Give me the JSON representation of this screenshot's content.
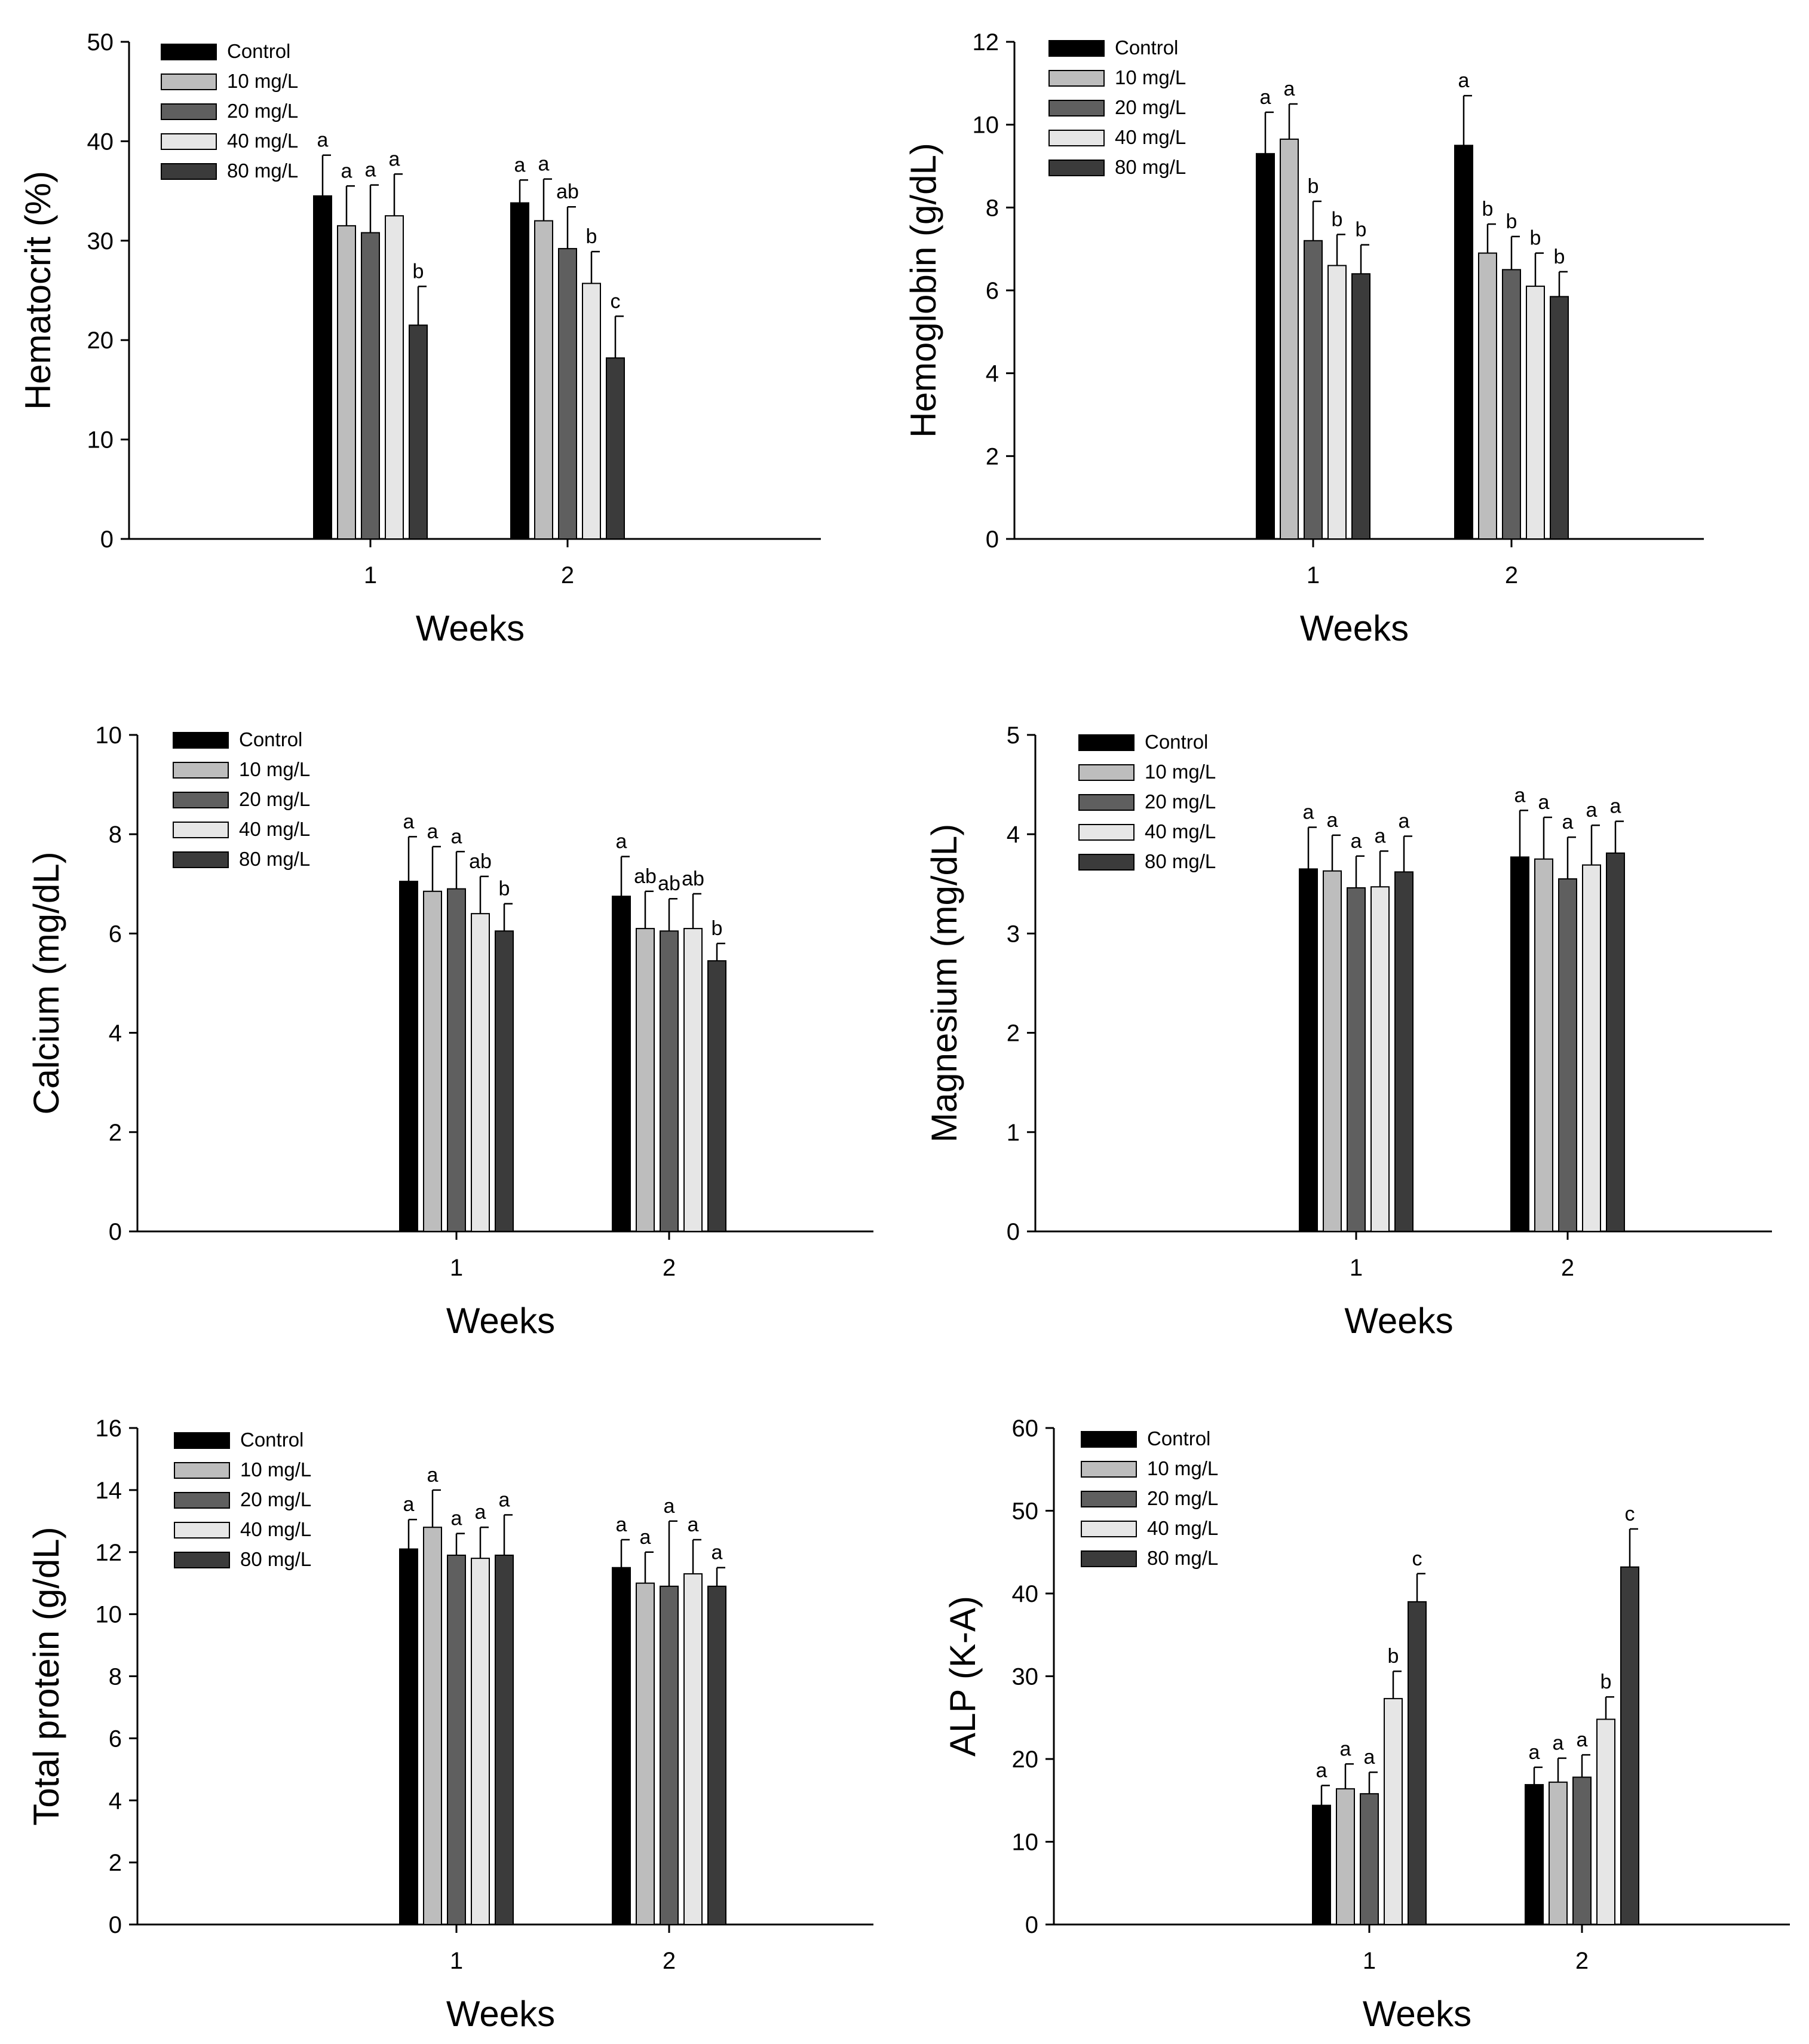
{
  "chart_data": [
    {
      "type": "bar",
      "ylabel": "Hematocrit (%)",
      "xlabel": "Weeks",
      "ylim": [
        0,
        50
      ],
      "yticks": [
        "0",
        "10",
        "20",
        "30",
        "40",
        "50"
      ],
      "categories": [
        "1",
        "2"
      ],
      "legend": [
        "Control",
        "10 mg/L",
        "20 mg/L",
        "40 mg/L",
        "80 mg/L"
      ],
      "series": [
        {
          "name": "Control",
          "color": "#000000",
          "values": [
            34.5,
            33.8
          ],
          "errors": [
            4.1,
            2.3
          ],
          "letters": [
            "a",
            "a"
          ]
        },
        {
          "name": "10 mg/L",
          "color": "#bdbdbd",
          "values": [
            31.5,
            32.0
          ],
          "errors": [
            4.0,
            4.2
          ],
          "letters": [
            "a",
            "a"
          ]
        },
        {
          "name": "20 mg/L",
          "color": "#5f5f5f",
          "values": [
            30.8,
            29.2
          ],
          "errors": [
            4.8,
            4.2
          ],
          "letters": [
            "a",
            "ab"
          ]
        },
        {
          "name": "40 mg/L",
          "color": "#e6e6e6",
          "values": [
            32.5,
            25.7
          ],
          "errors": [
            4.2,
            3.2
          ],
          "letters": [
            "a",
            "b"
          ]
        },
        {
          "name": "80 mg/L",
          "color": "#3b3b3b",
          "values": [
            21.5,
            18.2
          ],
          "errors": [
            3.9,
            4.2
          ],
          "letters": [
            "b",
            "c"
          ]
        }
      ]
    },
    {
      "type": "bar",
      "ylabel": "Hemoglobin (g/dL)",
      "xlabel": "Weeks",
      "ylim": [
        0,
        12
      ],
      "yticks": [
        "0",
        "2",
        "4",
        "6",
        "8",
        "10",
        "12"
      ],
      "categories": [
        "1",
        "2"
      ],
      "legend": [
        "Control",
        "10 mg/L",
        "20 mg/L",
        "40 mg/L",
        "80 mg/L"
      ],
      "series": [
        {
          "name": "Control",
          "color": "#000000",
          "values": [
            9.3,
            9.5
          ],
          "errors": [
            1.0,
            1.2
          ],
          "letters": [
            "a",
            "a"
          ]
        },
        {
          "name": "10 mg/L",
          "color": "#bdbdbd",
          "values": [
            9.65,
            6.9
          ],
          "errors": [
            0.85,
            0.7
          ],
          "letters": [
            "a",
            "b"
          ]
        },
        {
          "name": "20 mg/L",
          "color": "#5f5f5f",
          "values": [
            7.2,
            6.5
          ],
          "errors": [
            0.95,
            0.8
          ],
          "letters": [
            "b",
            "b"
          ]
        },
        {
          "name": "40 mg/L",
          "color": "#e6e6e6",
          "values": [
            6.6,
            6.1
          ],
          "errors": [
            0.75,
            0.8
          ],
          "letters": [
            "b",
            "b"
          ]
        },
        {
          "name": "80 mg/L",
          "color": "#3b3b3b",
          "values": [
            6.4,
            5.85
          ],
          "errors": [
            0.7,
            0.6
          ],
          "letters": [
            "b",
            "b"
          ]
        }
      ]
    },
    {
      "type": "bar",
      "ylabel": "Calcium (mg/dL)",
      "xlabel": "Weeks",
      "ylim": [
        0,
        10
      ],
      "yticks": [
        "0",
        "2",
        "4",
        "6",
        "8",
        "10"
      ],
      "categories": [
        "1",
        "2"
      ],
      "legend": [
        "Control",
        "10 mg/L",
        "20 mg/L",
        "40 mg/L",
        "80 mg/L"
      ],
      "series": [
        {
          "name": "Control",
          "color": "#000000",
          "values": [
            7.05,
            6.75
          ],
          "errors": [
            0.9,
            0.8
          ],
          "letters": [
            "a",
            "a"
          ]
        },
        {
          "name": "10 mg/L",
          "color": "#bdbdbd",
          "values": [
            6.85,
            6.1
          ],
          "errors": [
            0.9,
            0.75
          ],
          "letters": [
            "a",
            "ab"
          ]
        },
        {
          "name": "20 mg/L",
          "color": "#5f5f5f",
          "values": [
            6.9,
            6.05
          ],
          "errors": [
            0.75,
            0.65
          ],
          "letters": [
            "a",
            "ab"
          ]
        },
        {
          "name": "40 mg/L",
          "color": "#e6e6e6",
          "values": [
            6.4,
            6.1
          ],
          "errors": [
            0.75,
            0.7
          ],
          "letters": [
            "ab",
            "ab"
          ]
        },
        {
          "name": "80 mg/L",
          "color": "#3b3b3b",
          "values": [
            6.05,
            5.45
          ],
          "errors": [
            0.55,
            0.35
          ],
          "letters": [
            "b",
            "b"
          ]
        }
      ]
    },
    {
      "type": "bar",
      "ylabel": "Magnesium (mg/dL)",
      "xlabel": "Weeks",
      "ylim": [
        0,
        5
      ],
      "yticks": [
        "0",
        "1",
        "2",
        "3",
        "4",
        "5"
      ],
      "categories": [
        "1",
        "2"
      ],
      "legend": [
        "Control",
        "10 mg/L",
        "20 mg/L",
        "40 mg/L",
        "80 mg/L"
      ],
      "series": [
        {
          "name": "Control",
          "color": "#000000",
          "values": [
            3.65,
            3.77
          ],
          "errors": [
            0.42,
            0.47
          ],
          "letters": [
            "a",
            "a"
          ]
        },
        {
          "name": "10 mg/L",
          "color": "#bdbdbd",
          "values": [
            3.63,
            3.75
          ],
          "errors": [
            0.36,
            0.42
          ],
          "letters": [
            "a",
            "a"
          ]
        },
        {
          "name": "20 mg/L",
          "color": "#5f5f5f",
          "values": [
            3.46,
            3.55
          ],
          "errors": [
            0.32,
            0.42
          ],
          "letters": [
            "a",
            "a"
          ]
        },
        {
          "name": "40 mg/L",
          "color": "#e6e6e6",
          "values": [
            3.47,
            3.69
          ],
          "errors": [
            0.36,
            0.4
          ],
          "letters": [
            "a",
            "a"
          ]
        },
        {
          "name": "80 mg/L",
          "color": "#3b3b3b",
          "values": [
            3.62,
            3.81
          ],
          "errors": [
            0.36,
            0.32
          ],
          "letters": [
            "a",
            "a"
          ]
        }
      ]
    },
    {
      "type": "bar",
      "ylabel": "Total protein (g/dL)",
      "xlabel": "Weeks",
      "ylim": [
        0,
        16
      ],
      "yticks": [
        "0",
        "2",
        "4",
        "6",
        "8",
        "10",
        "12",
        "14",
        "16"
      ],
      "categories": [
        "1",
        "2"
      ],
      "legend": [
        "Control",
        "10 mg/L",
        "20 mg/L",
        "40 mg/L",
        "80 mg/L"
      ],
      "series": [
        {
          "name": "Control",
          "color": "#000000",
          "values": [
            12.1,
            11.5
          ],
          "errors": [
            0.95,
            0.9
          ],
          "letters": [
            "a",
            "a"
          ]
        },
        {
          "name": "10 mg/L",
          "color": "#bdbdbd",
          "values": [
            12.8,
            11.0
          ],
          "errors": [
            1.2,
            1.0
          ],
          "letters": [
            "a",
            "a"
          ]
        },
        {
          "name": "20 mg/L",
          "color": "#5f5f5f",
          "values": [
            11.9,
            10.9
          ],
          "errors": [
            0.7,
            2.1
          ],
          "letters": [
            "a",
            "a"
          ]
        },
        {
          "name": "40 mg/L",
          "color": "#e6e6e6",
          "values": [
            11.8,
            11.3
          ],
          "errors": [
            1.0,
            1.1
          ],
          "letters": [
            "a",
            "a"
          ]
        },
        {
          "name": "80 mg/L",
          "color": "#3b3b3b",
          "values": [
            11.9,
            10.9
          ],
          "errors": [
            1.3,
            0.6
          ],
          "letters": [
            "a",
            "a"
          ]
        }
      ]
    },
    {
      "type": "bar",
      "ylabel": "ALP (K-A)",
      "xlabel": "Weeks",
      "ylim": [
        0,
        60
      ],
      "yticks": [
        "0",
        "10",
        "20",
        "30",
        "40",
        "50",
        "60"
      ],
      "categories": [
        "1",
        "2"
      ],
      "legend": [
        "Control",
        "10 mg/L",
        "20 mg/L",
        "40 mg/L",
        "80 mg/L"
      ],
      "series": [
        {
          "name": "Control",
          "color": "#000000",
          "values": [
            14.4,
            16.9
          ],
          "errors": [
            2.4,
            2.1
          ],
          "letters": [
            "a",
            "a"
          ]
        },
        {
          "name": "10 mg/L",
          "color": "#bdbdbd",
          "values": [
            16.4,
            17.2
          ],
          "errors": [
            3.0,
            2.9
          ],
          "letters": [
            "a",
            "a"
          ]
        },
        {
          "name": "20 mg/L",
          "color": "#5f5f5f",
          "values": [
            15.8,
            17.8
          ],
          "errors": [
            2.6,
            2.7
          ],
          "letters": [
            "a",
            "a"
          ]
        },
        {
          "name": "40 mg/L",
          "color": "#e6e6e6",
          "values": [
            27.3,
            24.8
          ],
          "errors": [
            3.3,
            2.7
          ],
          "letters": [
            "b",
            "b"
          ]
        },
        {
          "name": "80 mg/L",
          "color": "#3b3b3b",
          "values": [
            39.0,
            43.2
          ],
          "errors": [
            3.4,
            4.6
          ],
          "letters": [
            "c",
            "c"
          ]
        }
      ]
    }
  ]
}
